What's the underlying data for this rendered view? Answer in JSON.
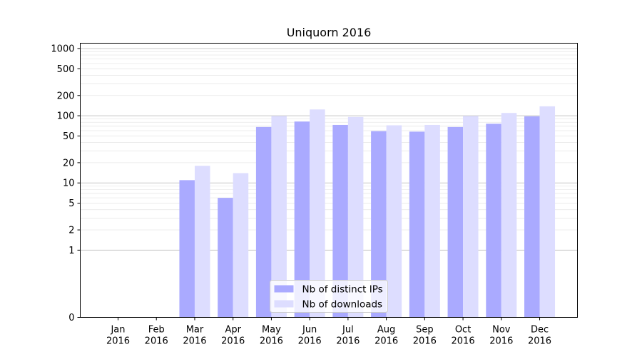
{
  "chart_data": {
    "type": "bar",
    "title": "Uniquorn 2016",
    "xlabel": "",
    "ylabel": "",
    "y_scale": "symlog",
    "ylim": [
      0,
      1200
    ],
    "grid": "horizontal",
    "legend_position": "lower-center",
    "categories": [
      [
        "Jan",
        "2016"
      ],
      [
        "Feb",
        "2016"
      ],
      [
        "Mar",
        "2016"
      ],
      [
        "Apr",
        "2016"
      ],
      [
        "May",
        "2016"
      ],
      [
        "Jun",
        "2016"
      ],
      [
        "Jul",
        "2016"
      ],
      [
        "Aug",
        "2016"
      ],
      [
        "Sep",
        "2016"
      ],
      [
        "Oct",
        "2016"
      ],
      [
        "Nov",
        "2016"
      ],
      [
        "Dec",
        "2016"
      ]
    ],
    "y_ticks": [
      0,
      1,
      2,
      5,
      10,
      20,
      50,
      100,
      200,
      500,
      1000
    ],
    "series": [
      {
        "name": "Nb of distinct IPs",
        "color": "#aaaaff",
        "values": [
          0,
          0,
          11,
          6,
          68,
          82,
          73,
          59,
          58,
          68,
          76,
          98
        ]
      },
      {
        "name": "Nb of downloads",
        "color": "#ddddff",
        "values": [
          0,
          0,
          18,
          14,
          99,
          124,
          96,
          72,
          73,
          99,
          110,
          138
        ]
      }
    ]
  }
}
